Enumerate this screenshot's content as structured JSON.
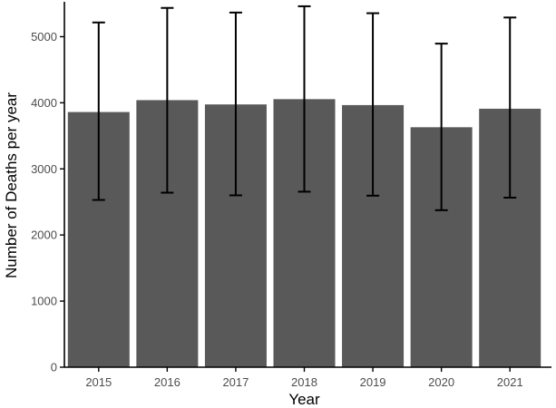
{
  "chart_data": {
    "type": "bar",
    "title": "",
    "xlabel": "Year",
    "ylabel": "Number of Deaths per year",
    "categories": [
      "2015",
      "2016",
      "2017",
      "2018",
      "2019",
      "2020",
      "2021"
    ],
    "values": [
      3860,
      4040,
      3975,
      4055,
      3965,
      3630,
      3910
    ],
    "error_low": [
      2530,
      2640,
      2600,
      2655,
      2595,
      2375,
      2565
    ],
    "error_high": [
      5215,
      5435,
      5365,
      5460,
      5355,
      4895,
      5290
    ],
    "ylim": [
      0,
      5500
    ],
    "yticks": [
      0,
      1000,
      2000,
      3000,
      4000,
      5000
    ],
    "grid": false,
    "legend": "none",
    "bar_color": "#595959",
    "errorbar_color": "#000000",
    "axis_color": "#000000"
  }
}
